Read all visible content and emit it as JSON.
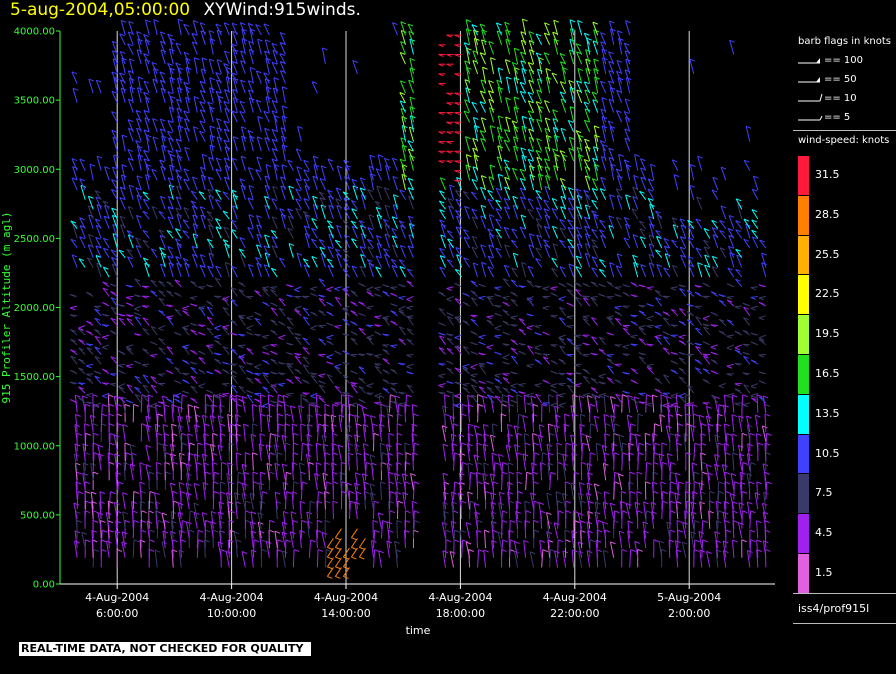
{
  "header": {
    "date": "5-aug-2004,05:00:00",
    "name": "XYWind:915winds."
  },
  "warning": "REAL-TIME DATA, NOT CHECKED FOR QUALITY",
  "legend": {
    "flags_title": "barb flags in knots",
    "flags": [
      {
        "value": 100,
        "label": "== 100"
      },
      {
        "value": 50,
        "label": "== 50"
      },
      {
        "value": 10,
        "label": "== 10"
      },
      {
        "value": 5,
        "label": "== 5"
      }
    ],
    "speed_title": "wind-speed: knots",
    "speed_bins": [
      {
        "label": "31.5",
        "color": "#ff1a3c"
      },
      {
        "label": "28.5",
        "color": "#ff8000"
      },
      {
        "label": "25.5",
        "color": "#ffb000"
      },
      {
        "label": "22.5",
        "color": "#ffff00"
      },
      {
        "label": "19.5",
        "color": "#a0ff30"
      },
      {
        "label": "16.5",
        "color": "#20e020"
      },
      {
        "label": "13.5",
        "color": "#00ffff"
      },
      {
        "label": "10.5",
        "color": "#4040ff"
      },
      {
        "label": "7.5",
        "color": "#3a3a6a"
      },
      {
        "label": "4.5",
        "color": "#a020f0"
      },
      {
        "label": "1.5",
        "color": "#e060e0"
      }
    ],
    "station": "iss4/prof915l"
  },
  "chart_data": {
    "type": "scatter",
    "subtype": "wind-barb time-height",
    "xlabel": "time",
    "ylabel": "915 Profiler Altitude (m agl)",
    "ylim": [
      0,
      4000
    ],
    "y_ticks": [
      "0.00",
      "500.00",
      "1000.00",
      "1500.00",
      "2000.00",
      "2500.00",
      "3000.00",
      "3500.00",
      "4000.00"
    ],
    "x_range_hours": [
      "4-Aug-2004 4:00",
      "5-Aug-2004 5:00"
    ],
    "x_ticks": [
      {
        "line1": "4-Aug-2004",
        "line2": "6:00:00",
        "hour": 6
      },
      {
        "line1": "4-Aug-2004",
        "line2": "10:00:00",
        "hour": 10
      },
      {
        "line1": "4-Aug-2004",
        "line2": "14:00:00",
        "hour": 14
      },
      {
        "line1": "4-Aug-2004",
        "line2": "18:00:00",
        "hour": 18
      },
      {
        "line1": "4-Aug-2004",
        "line2": "22:00:00",
        "hour": 22
      },
      {
        "line1": "5-Aug-2004",
        "line2": "2:00:00",
        "hour": 26
      }
    ],
    "grid": "vertical lines at tick times",
    "speed_units": "knots",
    "layers": [
      {
        "alt_range": [
          100,
          1300
        ],
        "dominant_speed_knots": 4.5,
        "direction": "northerly-to-northwesterly"
      },
      {
        "alt_range": [
          1300,
          2200
        ],
        "dominant_speed_knots": 7.5,
        "direction": "westerly"
      },
      {
        "alt_range": [
          2200,
          2800
        ],
        "dominant_speed_knots": 10.5,
        "direction": "northwesterly"
      },
      {
        "alt_range": [
          2800,
          4000
        ],
        "dominant_speed_knots": 16.5,
        "direction": "northwesterly",
        "hours": [
          16,
          23
        ]
      },
      {
        "alt_range": [
          2900,
          4000
        ],
        "dominant_speed_knots": 31.5,
        "direction": "westerly",
        "hours": [
          17,
          18
        ]
      }
    ]
  }
}
